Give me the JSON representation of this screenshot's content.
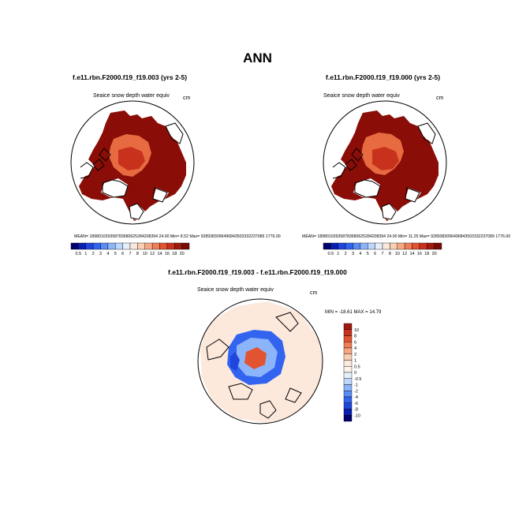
{
  "page": {
    "title": "ANN"
  },
  "panels": [
    {
      "title": "f.e11.rbn.F2000.f19_f19.003 (yrs 2-5)",
      "variable": "Seaice snow depth water equiv",
      "units": "cm",
      "stats": {
        "mean_label": "MEAN=",
        "mean": "189801039358783680625284208394 24.00",
        "min_label": "Min=",
        "min": "8.52",
        "max_label": "Max=",
        "max": "9289383096496843503332237089 1776.00"
      }
    },
    {
      "title": "f.e11.rbn.F2000.f19_f19.000 (yrs 2-5)",
      "variable": "Seaice snow depth water equiv",
      "units": "cm",
      "stats": {
        "mean_label": "MEAN=",
        "mean": "189801039358783680625284208394 24.00",
        "min_label": "Min=",
        "min": "11.25",
        "max_label": "Max=",
        "max": "9289383096496843503332237089 1776.00"
      }
    },
    {
      "title": "f.e11.rbn.F2000.f19_f19.003 - f.e11.rbn.F2000.f19_f19.000",
      "variable": "Seaice snow depth water equiv",
      "units": "cm",
      "minmax": "MIN = -18.61 MAX = 14.79"
    }
  ],
  "chart_data": [
    {
      "type": "heatmap",
      "projection": "north-polar-stereographic",
      "colorbar": {
        "orientation": "horizontal",
        "levels": [
          "0.5",
          "1",
          "2",
          "3",
          "4",
          "5",
          "6",
          "7",
          "8",
          "10",
          "12",
          "14",
          "16",
          "18",
          "20"
        ],
        "colors": [
          "#00006e",
          "#0a1eb4",
          "#1e46dc",
          "#3264f0",
          "#5a8cf5",
          "#8cb4fa",
          "#bed7fc",
          "#e6f0fd",
          "#fde8dc",
          "#fbcfb4",
          "#f7a882",
          "#f07d55",
          "#e25331",
          "#c8321c",
          "#a01a0f",
          "#780a05"
        ]
      },
      "min": 8.52
    },
    {
      "type": "heatmap",
      "projection": "north-polar-stereographic",
      "colorbar": {
        "orientation": "horizontal",
        "levels": [
          "0.5",
          "1",
          "2",
          "3",
          "4",
          "5",
          "6",
          "7",
          "8",
          "10",
          "12",
          "14",
          "16",
          "18",
          "20"
        ],
        "colors": [
          "#00006e",
          "#0a1eb4",
          "#1e46dc",
          "#3264f0",
          "#5a8cf5",
          "#8cb4fa",
          "#bed7fc",
          "#e6f0fd",
          "#fde8dc",
          "#fbcfb4",
          "#f7a882",
          "#f07d55",
          "#e25331",
          "#c8321c",
          "#a01a0f",
          "#780a05"
        ]
      },
      "min": 11.25
    },
    {
      "type": "heatmap",
      "projection": "north-polar-stereographic",
      "colorbar": {
        "orientation": "vertical",
        "levels": [
          "10",
          "8",
          "6",
          "4",
          "2",
          "1",
          "0.5",
          "0",
          "-0.5",
          "-1",
          "-2",
          "-4",
          "-6",
          "-8",
          "-10"
        ],
        "colors": [
          "#a01a0f",
          "#c8321c",
          "#e25331",
          "#f07d55",
          "#f7a882",
          "#fbcfb4",
          "#fde8dc",
          "#fdf3ec",
          "#e6f0fd",
          "#bed7fc",
          "#8cb4fa",
          "#5a8cf5",
          "#3264f0",
          "#1e46dc",
          "#0a1eb4",
          "#00006e"
        ]
      },
      "min": -18.61,
      "max": 14.79
    }
  ]
}
